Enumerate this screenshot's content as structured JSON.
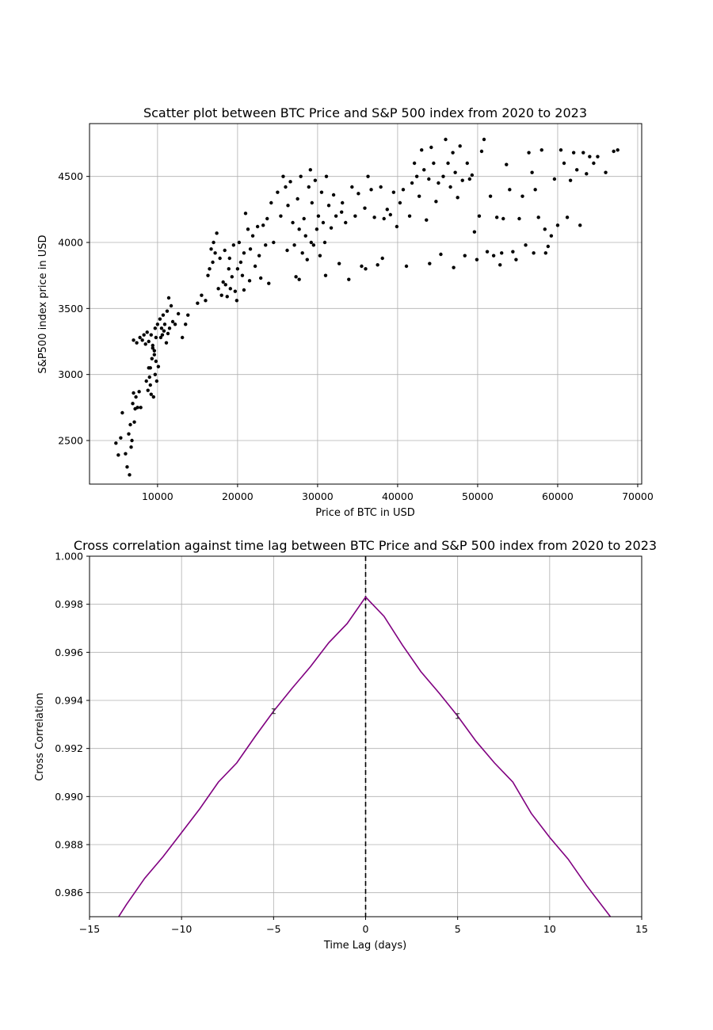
{
  "chart_data": [
    {
      "type": "scatter",
      "title": "Scatter plot between BTC Price and S&P 500 index from 2020 to 2023",
      "xlabel": "Price of BTC in USD",
      "ylabel": "S&P500 index price in USD",
      "xlim": [
        1500,
        70500
      ],
      "ylim": [
        2170,
        4900
      ],
      "xticks": [
        10000,
        20000,
        30000,
        40000,
        50000,
        60000,
        70000
      ],
      "yticks": [
        2500,
        3000,
        3500,
        4000,
        4500
      ],
      "grid": true,
      "point_color": "#000000",
      "points": [
        [
          4800,
          2480
        ],
        [
          5100,
          2390
        ],
        [
          5400,
          2520
        ],
        [
          5600,
          2710
        ],
        [
          6000,
          2400
        ],
        [
          6200,
          2300
        ],
        [
          6400,
          2550
        ],
        [
          6500,
          2240
        ],
        [
          6600,
          2620
        ],
        [
          6700,
          2450
        ],
        [
          6800,
          2500
        ],
        [
          6900,
          2780
        ],
        [
          7000,
          2860
        ],
        [
          7100,
          2640
        ],
        [
          7200,
          2740
        ],
        [
          7300,
          2830
        ],
        [
          7500,
          2750
        ],
        [
          7700,
          2870
        ],
        [
          7900,
          2750
        ],
        [
          7000,
          3260
        ],
        [
          7400,
          3240
        ],
        [
          7800,
          3280
        ],
        [
          8100,
          3260
        ],
        [
          8300,
          3300
        ],
        [
          8500,
          3230
        ],
        [
          8700,
          3320
        ],
        [
          8900,
          3250
        ],
        [
          8600,
          2950
        ],
        [
          8800,
          2880
        ],
        [
          9000,
          2980
        ],
        [
          9100,
          3050
        ],
        [
          9200,
          2850
        ],
        [
          9300,
          3120
        ],
        [
          9400,
          3200
        ],
        [
          9500,
          2830
        ],
        [
          9600,
          3150
        ],
        [
          9700,
          3350
        ],
        [
          9800,
          3280
        ],
        [
          9900,
          2950
        ],
        [
          10000,
          3380
        ],
        [
          10100,
          3060
        ],
        [
          10300,
          3420
        ],
        [
          10500,
          3350
        ],
        [
          10600,
          3300
        ],
        [
          10700,
          3450
        ],
        [
          10900,
          3380
        ],
        [
          11100,
          3240
        ],
        [
          11200,
          3480
        ],
        [
          11400,
          3580
        ],
        [
          11500,
          3350
        ],
        [
          11700,
          3520
        ],
        [
          11900,
          3400
        ],
        [
          12200,
          3380
        ],
        [
          12600,
          3460
        ],
        [
          13100,
          3280
        ],
        [
          13500,
          3380
        ],
        [
          13800,
          3450
        ],
        [
          9200,
          3300
        ],
        [
          9400,
          3220
        ],
        [
          9600,
          3180
        ],
        [
          9800,
          3100
        ],
        [
          8900,
          3050
        ],
        [
          9100,
          2920
        ],
        [
          9700,
          3000
        ],
        [
          10400,
          3280
        ],
        [
          10800,
          3330
        ],
        [
          11300,
          3310
        ],
        [
          15000,
          3540
        ],
        [
          15500,
          3600
        ],
        [
          16000,
          3560
        ],
        [
          16300,
          3750
        ],
        [
          16500,
          3800
        ],
        [
          16700,
          3950
        ],
        [
          16900,
          3850
        ],
        [
          17000,
          4000
        ],
        [
          17200,
          3920
        ],
        [
          17400,
          4070
        ],
        [
          17600,
          3650
        ],
        [
          17800,
          3880
        ],
        [
          18000,
          3600
        ],
        [
          18200,
          3700
        ],
        [
          18500,
          3680
        ],
        [
          18700,
          3590
        ],
        [
          18900,
          3800
        ],
        [
          19100,
          3650
        ],
        [
          19300,
          3740
        ],
        [
          19500,
          3980
        ],
        [
          19700,
          3630
        ],
        [
          19900,
          3560
        ],
        [
          20000,
          3800
        ],
        [
          20200,
          4000
        ],
        [
          20400,
          3850
        ],
        [
          20600,
          3750
        ],
        [
          20800,
          3920
        ],
        [
          21000,
          4220
        ],
        [
          21300,
          4100
        ],
        [
          21600,
          3950
        ],
        [
          21900,
          4050
        ],
        [
          22200,
          3820
        ],
        [
          22500,
          4120
        ],
        [
          22700,
          3900
        ],
        [
          22900,
          3730
        ],
        [
          23200,
          4130
        ],
        [
          23500,
          3980
        ],
        [
          23700,
          4180
        ],
        [
          23900,
          3690
        ],
        [
          24200,
          4300
        ],
        [
          24500,
          4000
        ],
        [
          18400,
          3940
        ],
        [
          19000,
          3880
        ],
        [
          20800,
          3640
        ],
        [
          21500,
          3710
        ],
        [
          25000,
          4380
        ],
        [
          25400,
          4200
        ],
        [
          25700,
          4500
        ],
        [
          26000,
          4420
        ],
        [
          26300,
          4280
        ],
        [
          26600,
          4460
        ],
        [
          26900,
          4150
        ],
        [
          27100,
          3980
        ],
        [
          27300,
          3740
        ],
        [
          27500,
          4330
        ],
        [
          27700,
          4100
        ],
        [
          27900,
          4500
        ],
        [
          28100,
          3920
        ],
        [
          28300,
          4180
        ],
        [
          28500,
          4050
        ],
        [
          28700,
          3870
        ],
        [
          28900,
          4420
        ],
        [
          29100,
          4550
        ],
        [
          29300,
          4300
        ],
        [
          29500,
          3980
        ],
        [
          29700,
          4470
        ],
        [
          29900,
          4100
        ],
        [
          30100,
          4200
        ],
        [
          30300,
          3900
        ],
        [
          30500,
          4380
        ],
        [
          30700,
          4150
        ],
        [
          30900,
          4000
        ],
        [
          31100,
          4500
        ],
        [
          31400,
          4280
        ],
        [
          31700,
          4110
        ],
        [
          32000,
          4360
        ],
        [
          32300,
          4200
        ],
        [
          32700,
          3840
        ],
        [
          33100,
          4300
        ],
        [
          33500,
          4150
        ],
        [
          33900,
          3720
        ],
        [
          34300,
          4420
        ],
        [
          34700,
          4200
        ],
        [
          35100,
          4370
        ],
        [
          35500,
          3820
        ],
        [
          35900,
          4260
        ],
        [
          36300,
          4500
        ],
        [
          36700,
          4400
        ],
        [
          37100,
          4190
        ],
        [
          37500,
          3830
        ],
        [
          37900,
          4420
        ],
        [
          38300,
          4180
        ],
        [
          38700,
          4250
        ],
        [
          39100,
          4210
        ],
        [
          39500,
          4380
        ],
        [
          39900,
          4120
        ],
        [
          40300,
          4300
        ],
        [
          40700,
          4400
        ],
        [
          41100,
          3820
        ],
        [
          41500,
          4200
        ],
        [
          26200,
          3940
        ],
        [
          27700,
          3720
        ],
        [
          29200,
          4000
        ],
        [
          31000,
          3750
        ],
        [
          33000,
          4230
        ],
        [
          36000,
          3800
        ],
        [
          38100,
          3880
        ],
        [
          41800,
          4450
        ],
        [
          42100,
          4600
        ],
        [
          42400,
          4500
        ],
        [
          42700,
          4350
        ],
        [
          43000,
          4700
        ],
        [
          43300,
          4550
        ],
        [
          43600,
          4170
        ],
        [
          43900,
          4480
        ],
        [
          44200,
          4720
        ],
        [
          44500,
          4600
        ],
        [
          44800,
          4310
        ],
        [
          45100,
          4450
        ],
        [
          45400,
          3910
        ],
        [
          45700,
          4500
        ],
        [
          46000,
          4780
        ],
        [
          46300,
          4600
        ],
        [
          46600,
          4420
        ],
        [
          46900,
          4680
        ],
        [
          47200,
          4530
        ],
        [
          47500,
          4340
        ],
        [
          47800,
          4730
        ],
        [
          48100,
          4470
        ],
        [
          48400,
          3900
        ],
        [
          48700,
          4600
        ],
        [
          49000,
          4480
        ],
        [
          49300,
          4510
        ],
        [
          49600,
          4080
        ],
        [
          49900,
          3870
        ],
        [
          50200,
          4200
        ],
        [
          50500,
          4690
        ],
        [
          50800,
          4780
        ],
        [
          51200,
          3930
        ],
        [
          51600,
          4350
        ],
        [
          52000,
          3900
        ],
        [
          52400,
          4190
        ],
        [
          52800,
          3830
        ],
        [
          53200,
          4180
        ],
        [
          53600,
          4590
        ],
        [
          54000,
          4400
        ],
        [
          54400,
          3930
        ],
        [
          54800,
          3870
        ],
        [
          55200,
          4180
        ],
        [
          55600,
          4350
        ],
        [
          56000,
          3980
        ],
        [
          56400,
          4680
        ],
        [
          56800,
          4530
        ],
        [
          57200,
          4400
        ],
        [
          57600,
          4190
        ],
        [
          58000,
          4700
        ],
        [
          58400,
          4100
        ],
        [
          58800,
          3970
        ],
        [
          59200,
          4050
        ],
        [
          59600,
          4480
        ],
        [
          60000,
          4130
        ],
        [
          60400,
          4700
        ],
        [
          60800,
          4600
        ],
        [
          61200,
          4190
        ],
        [
          61600,
          4470
        ],
        [
          62000,
          4680
        ],
        [
          62400,
          4550
        ],
        [
          62800,
          4130
        ],
        [
          63200,
          4680
        ],
        [
          63600,
          4520
        ],
        [
          64000,
          4650
        ],
        [
          64500,
          4600
        ],
        [
          65000,
          4650
        ],
        [
          66000,
          4530
        ],
        [
          67000,
          4690
        ],
        [
          67500,
          4700
        ],
        [
          44000,
          3840
        ],
        [
          47000,
          3810
        ],
        [
          53000,
          3920
        ],
        [
          57000,
          3920
        ],
        [
          58500,
          3920
        ]
      ]
    },
    {
      "type": "line",
      "title": "Cross correlation against time lag between BTC Price and S&P 500 index from 2020 to 2023",
      "xlabel": "Time Lag (days)",
      "ylabel": "Cross Correlation",
      "xlim": [
        -15,
        15
      ],
      "ylim": [
        0.985,
        1.0
      ],
      "xticks": [
        -15,
        -10,
        -5,
        0,
        5,
        10,
        15
      ],
      "xtick_labels": [
        "−15",
        "−10",
        "−5",
        "0",
        "5",
        "10",
        "15"
      ],
      "yticks": [
        0.986,
        0.988,
        0.99,
        0.992,
        0.994,
        0.996,
        0.998,
        1.0
      ],
      "ytick_labels": [
        "0.986",
        "0.988",
        "0.990",
        "0.992",
        "0.994",
        "0.996",
        "0.998",
        "1.000"
      ],
      "grid": true,
      "line_color": "#800080",
      "vline": {
        "x": 0,
        "style": "dashed",
        "color": "#000000"
      },
      "series": [
        {
          "x": [
            -15,
            -14,
            -13,
            -12,
            -11,
            -10,
            -9,
            -8,
            -7,
            -6,
            -5,
            -4,
            -3,
            -2,
            -1,
            0,
            1,
            2,
            3,
            4,
            5,
            6,
            7,
            8,
            9,
            10,
            11,
            12,
            13,
            14,
            15
          ],
          "values": [
            0.9835,
            0.9843,
            0.9855,
            0.9866,
            0.9875,
            0.9885,
            0.9895,
            0.9906,
            0.9914,
            0.9925,
            0.99355,
            0.9945,
            0.9954,
            0.9964,
            0.9972,
            0.9983,
            0.9975,
            0.9963,
            0.9952,
            0.9943,
            0.99335,
            0.9923,
            0.9914,
            0.9906,
            0.9893,
            0.9883,
            0.9874,
            0.9863,
            0.9853,
            0.9843,
            0.9835
          ],
          "errorbars": [
            {
              "x": -5,
              "y": 0.99355
            },
            {
              "x": 5,
              "y": 0.99335
            }
          ]
        }
      ]
    }
  ]
}
